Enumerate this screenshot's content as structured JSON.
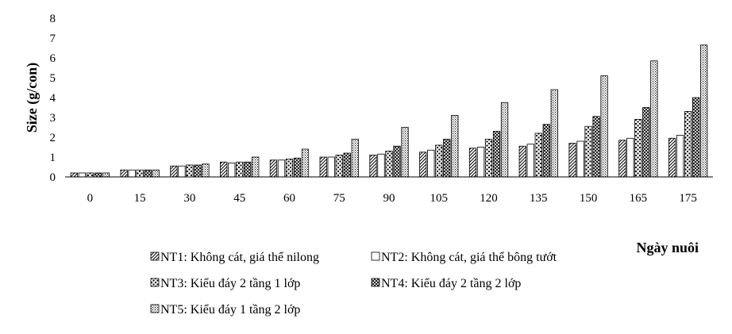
{
  "chart_data": {
    "type": "bar",
    "title": "",
    "xlabel": "Ngày nuôi",
    "ylabel": "Size (g/con)",
    "ylim": [
      0,
      8
    ],
    "yticks": [
      "0",
      "1",
      "2",
      "3",
      "4",
      "5",
      "6",
      "7",
      "8"
    ],
    "categories": [
      "0",
      "15",
      "30",
      "45",
      "60",
      "75",
      "90",
      "105",
      "120",
      "135",
      "150",
      "165",
      "175"
    ],
    "grid": false,
    "legend_position": "bottom",
    "series": [
      {
        "name": "NT1: Không cát, giá thể nilong",
        "pattern": "diagonal",
        "values": [
          0.2,
          0.35,
          0.55,
          0.75,
          0.85,
          1.0,
          1.1,
          1.25,
          1.45,
          1.55,
          1.7,
          1.85,
          1.95
        ]
      },
      {
        "name": "NT2: Không cát, giá thể bông tướt",
        "pattern": "blank",
        "values": [
          0.2,
          0.35,
          0.55,
          0.7,
          0.85,
          1.0,
          1.15,
          1.35,
          1.5,
          1.65,
          1.8,
          1.95,
          2.1
        ]
      },
      {
        "name": "NT3: Kiểu đáy 2 tầng 1 lớp",
        "pattern": "dots-large",
        "values": [
          0.2,
          0.35,
          0.6,
          0.75,
          0.9,
          1.1,
          1.3,
          1.6,
          1.9,
          2.2,
          2.55,
          2.9,
          3.3
        ]
      },
      {
        "name": "NT4: Kiểu đáy 2 tầng 2 lớp",
        "pattern": "cross-diagonal",
        "values": [
          0.2,
          0.35,
          0.6,
          0.75,
          0.95,
          1.2,
          1.55,
          1.9,
          2.3,
          2.65,
          3.05,
          3.5,
          4.0
        ]
      },
      {
        "name": "NT5: Kiểu đáy 1 tầng 2 lớp",
        "pattern": "dots-small",
        "values": [
          0.2,
          0.35,
          0.65,
          1.0,
          1.4,
          1.9,
          2.5,
          3.1,
          3.75,
          4.4,
          5.1,
          5.85,
          6.65
        ]
      }
    ]
  }
}
